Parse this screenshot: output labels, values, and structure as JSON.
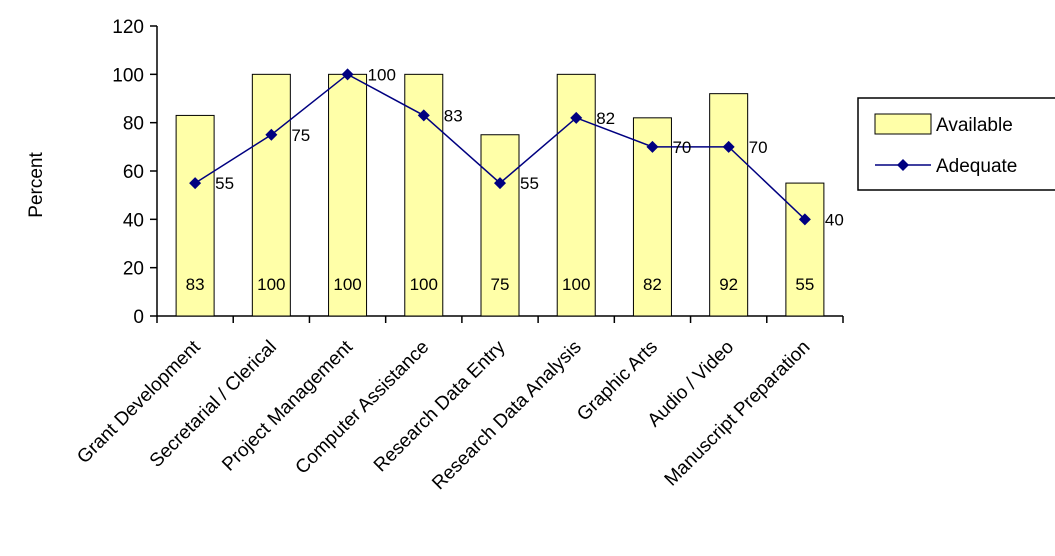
{
  "chart_data": {
    "type": "bar",
    "categories": [
      "Grant Development",
      "Secretarial / Clerical",
      "Project Management",
      "Computer Assistance",
      "Research Data Entry",
      "Research Data Analysis",
      "Graphic Arts",
      "Audio / Video",
      "Manuscript Preparation"
    ],
    "series": [
      {
        "name": "Available",
        "type": "bar",
        "values": [
          83,
          100,
          100,
          100,
          75,
          100,
          82,
          92,
          55
        ],
        "color": "#FFFFA8"
      },
      {
        "name": "Adequate",
        "type": "line",
        "values": [
          55,
          75,
          100,
          83,
          55,
          82,
          70,
          70,
          40
        ],
        "color": "#000080"
      }
    ],
    "title": "",
    "xlabel": "",
    "ylabel": "Percent",
    "ylim": [
      0,
      120
    ],
    "yticks": [
      0,
      20,
      40,
      60,
      80,
      100,
      120
    ],
    "grid": false,
    "legend": "right"
  }
}
